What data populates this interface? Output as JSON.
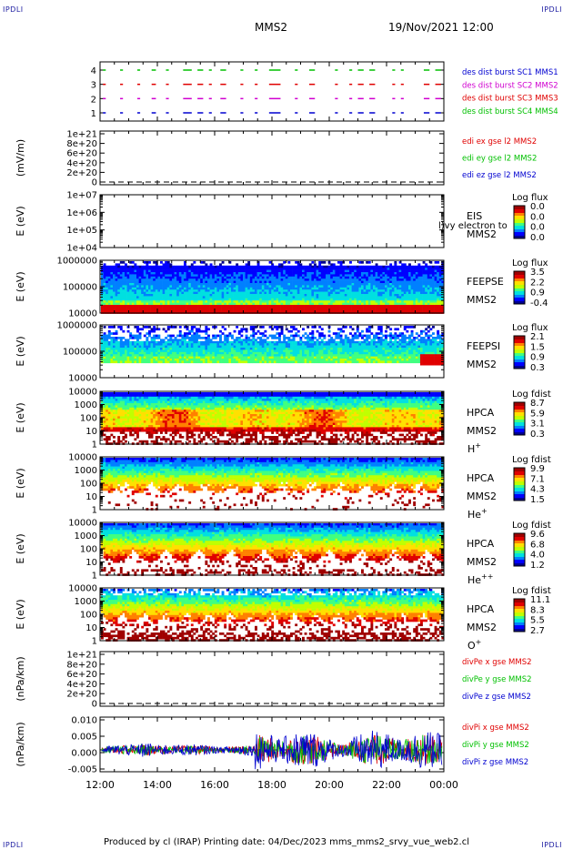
{
  "header": {
    "corner_label": "IPDLI",
    "spacecraft": "MMS2",
    "datetime": "19/Nov/2021 12:00"
  },
  "footer": {
    "text": "Produced by cl (IRAP)   Printing date: 04/Dec/2023   mms_mms2_srvy_vue_web2.cl"
  },
  "colors": {
    "red": "#e00000",
    "green": "#00c000",
    "blue": "#0000d0",
    "magenta": "#d000d0",
    "colorbar": [
      "#000090",
      "#0000ff",
      "#0080ff",
      "#00e0e0",
      "#40ff80",
      "#c0ff00",
      "#ffe000",
      "#ff8000",
      "#e00000",
      "#a00000"
    ]
  },
  "chart_data": {
    "time_axis": {
      "ticks": [
        "12:00",
        "14:00",
        "16:00",
        "18:00",
        "20:00",
        "22:00",
        "00:00"
      ],
      "range_hours": [
        12,
        24
      ]
    },
    "panels": [
      {
        "id": "burst",
        "type": "timeline",
        "yticks": [
          "4",
          "3",
          "2",
          "1"
        ],
        "legend": [
          {
            "text": "des dist burst SC1 MMS1",
            "color": "blue"
          },
          {
            "text": "des dist burst SC2 MMS2",
            "color": "magenta"
          },
          {
            "text": "des dist burst SC3 MMS3",
            "color": "red"
          },
          {
            "text": "des dist burst SC4 MMS4",
            "color": "green"
          }
        ],
        "rows": [
          {
            "level": 4,
            "color": "green",
            "segments": [
              [
                12.1,
                12.2
              ],
              [
                12.7,
                12.8
              ],
              [
                13.3,
                13.4
              ],
              [
                13.8,
                13.95
              ],
              [
                14.3,
                14.4
              ],
              [
                14.9,
                15.2
              ],
              [
                15.4,
                15.6
              ],
              [
                15.8,
                15.9
              ],
              [
                16.2,
                16.4
              ],
              [
                16.9,
                17.0
              ],
              [
                17.4,
                17.5
              ],
              [
                17.9,
                18.3
              ],
              [
                18.8,
                18.9
              ],
              [
                19.3,
                19.5
              ],
              [
                20.2,
                20.3
              ],
              [
                20.7,
                20.8
              ],
              [
                21.0,
                21.2
              ],
              [
                21.4,
                21.6
              ],
              [
                22.2,
                22.3
              ],
              [
                22.5,
                22.6
              ],
              [
                23.3,
                23.5
              ],
              [
                23.7,
                23.9
              ]
            ]
          },
          {
            "level": 3,
            "color": "red",
            "segments": [
              [
                12.1,
                12.2
              ],
              [
                12.7,
                12.8
              ],
              [
                13.3,
                13.4
              ],
              [
                13.8,
                13.95
              ],
              [
                14.3,
                14.4
              ],
              [
                14.9,
                15.2
              ],
              [
                15.4,
                15.6
              ],
              [
                15.8,
                15.9
              ],
              [
                16.2,
                16.4
              ],
              [
                16.9,
                17.0
              ],
              [
                17.4,
                17.5
              ],
              [
                17.9,
                18.3
              ],
              [
                18.8,
                18.9
              ],
              [
                19.3,
                19.5
              ],
              [
                20.2,
                20.3
              ],
              [
                20.7,
                20.8
              ],
              [
                21.0,
                21.2
              ],
              [
                21.4,
                21.6
              ],
              [
                22.2,
                22.3
              ],
              [
                22.5,
                22.6
              ],
              [
                23.3,
                23.5
              ],
              [
                23.7,
                23.9
              ]
            ]
          },
          {
            "level": 2,
            "color": "magenta",
            "segments": [
              [
                12.1,
                12.2
              ],
              [
                12.7,
                12.8
              ],
              [
                13.3,
                13.4
              ],
              [
                13.8,
                13.95
              ],
              [
                14.3,
                14.4
              ],
              [
                14.9,
                15.2
              ],
              [
                15.4,
                15.6
              ],
              [
                15.8,
                15.9
              ],
              [
                16.2,
                16.4
              ],
              [
                16.9,
                17.0
              ],
              [
                17.4,
                17.5
              ],
              [
                17.9,
                18.3
              ],
              [
                18.8,
                18.9
              ],
              [
                19.3,
                19.5
              ],
              [
                20.2,
                20.3
              ],
              [
                20.7,
                20.8
              ],
              [
                21.0,
                21.2
              ],
              [
                21.4,
                21.6
              ],
              [
                22.2,
                22.3
              ],
              [
                22.5,
                22.6
              ],
              [
                23.3,
                23.5
              ],
              [
                23.7,
                23.9
              ]
            ]
          },
          {
            "level": 1,
            "color": "blue",
            "segments": [
              [
                12.1,
                12.2
              ],
              [
                12.7,
                12.8
              ],
              [
                13.3,
                13.4
              ],
              [
                13.8,
                13.95
              ],
              [
                14.3,
                14.4
              ],
              [
                14.9,
                15.2
              ],
              [
                15.4,
                15.6
              ],
              [
                15.8,
                15.9
              ],
              [
                16.2,
                16.4
              ],
              [
                16.9,
                17.0
              ],
              [
                17.4,
                17.5
              ],
              [
                17.9,
                18.3
              ],
              [
                18.8,
                18.9
              ],
              [
                19.3,
                19.5
              ],
              [
                20.2,
                20.3
              ],
              [
                20.7,
                20.8
              ],
              [
                21.0,
                21.2
              ],
              [
                21.4,
                21.6
              ],
              [
                22.2,
                22.3
              ],
              [
                22.5,
                22.6
              ],
              [
                23.3,
                23.5
              ],
              [
                23.7,
                23.9
              ]
            ]
          }
        ]
      },
      {
        "id": "edi",
        "type": "line",
        "ylabel": "(mV/m)",
        "yticks": [
          "1e+21",
          "8e+20",
          "6e+20",
          "4e+20",
          "2e+20",
          "0"
        ],
        "ylim": [
          0,
          1e+21
        ],
        "zero_line": true,
        "legend": [
          {
            "text": "edi ex gse l2 MMS2",
            "color": "red"
          },
          {
            "text": "edi ey gse l2 MMS2",
            "color": "green"
          },
          {
            "text": "edi ez gse l2 MMS2",
            "color": "blue"
          }
        ]
      },
      {
        "id": "eis",
        "type": "spectrogram",
        "empty": true,
        "ylabel": "E (eV)",
        "yticks": [
          "1e+07",
          "1e+06",
          "1e+05",
          "1e+04"
        ],
        "labels": [
          "EIS",
          "MMS2"
        ],
        "overlay": "l)vy electron to",
        "colorbar": {
          "title": "Log flux",
          "values": [
            "0.0",
            "0.0",
            "0.0",
            "0.0"
          ]
        }
      },
      {
        "id": "feepse",
        "type": "spectrogram",
        "ylabel": "E (eV)",
        "yticks": [
          "1000000",
          "100000",
          "10000"
        ],
        "labels": [
          "FEEPSE",
          "MMS2"
        ],
        "colorbar": {
          "title": "Log flux",
          "values": [
            "3.5",
            "2.2",
            "0.9",
            "-0.4"
          ]
        }
      },
      {
        "id": "feepsi",
        "type": "spectrogram",
        "ylabel": "E (eV)",
        "yticks": [
          "1000000",
          "100000",
          "10000"
        ],
        "labels": [
          "FEEPSI",
          "MMS2"
        ],
        "colorbar": {
          "title": "Log flux",
          "values": [
            "2.1",
            "1.5",
            "0.9",
            "0.3"
          ]
        }
      },
      {
        "id": "hpca_h",
        "type": "spectrogram",
        "ylabel": "E (eV)",
        "yticks": [
          "10000",
          "1000",
          "100",
          "10",
          "1"
        ],
        "labels": [
          "HPCA",
          "MMS2"
        ],
        "species": "H",
        "charge": "+",
        "colorbar": {
          "title": "Log fdist",
          "values": [
            "8.7",
            "5.9",
            "3.1",
            "0.3"
          ]
        }
      },
      {
        "id": "hpca_he",
        "type": "spectrogram",
        "ylabel": "E (eV)",
        "yticks": [
          "10000",
          "1000",
          "100",
          "10",
          "1"
        ],
        "labels": [
          "HPCA",
          "MMS2"
        ],
        "species": "He",
        "charge": "+",
        "colorbar": {
          "title": "Log fdist",
          "values": [
            "9.9",
            "7.1",
            "4.3",
            "1.5"
          ]
        }
      },
      {
        "id": "hpca_hepp",
        "type": "spectrogram",
        "ylabel": "E (eV)",
        "yticks": [
          "10000",
          "1000",
          "100",
          "10",
          "1"
        ],
        "labels": [
          "HPCA",
          "MMS2"
        ],
        "species": "He",
        "charge": "++",
        "colorbar": {
          "title": "Log fdist",
          "values": [
            "9.6",
            "6.8",
            "4.0",
            "1.2"
          ]
        }
      },
      {
        "id": "hpca_o",
        "type": "spectrogram",
        "ylabel": "E (eV)",
        "yticks": [
          "10000",
          "1000",
          "100",
          "10",
          "1"
        ],
        "labels": [
          "HPCA",
          "MMS2"
        ],
        "species": "O",
        "charge": "+",
        "colorbar": {
          "title": "Log fdist",
          "values": [
            "11.1",
            "8.3",
            "5.5",
            "2.7"
          ]
        }
      },
      {
        "id": "divpe",
        "type": "line",
        "ylabel": "(nPa/km)",
        "yticks": [
          "1e+21",
          "8e+20",
          "6e+20",
          "4e+20",
          "2e+20",
          "0"
        ],
        "ylim": [
          0,
          1e+21
        ],
        "zero_line": true,
        "legend": [
          {
            "text": "divPe x gse MMS2",
            "color": "red"
          },
          {
            "text": "divPe y gse MMS2",
            "color": "green"
          },
          {
            "text": "divPe z gse MMS2",
            "color": "blue"
          }
        ]
      },
      {
        "id": "divpi",
        "type": "line",
        "ylabel": "(nPa/km)",
        "yticks": [
          "0.010",
          "0.005",
          "0.000",
          "-0.005"
        ],
        "ylim": [
          -0.008,
          0.012
        ],
        "zero_line": true,
        "legend": [
          {
            "text": "divPi x gse MMS2",
            "color": "red"
          },
          {
            "text": "divPi y gse MMS2",
            "color": "green"
          },
          {
            "text": "divPi z gse MMS2",
            "color": "blue"
          }
        ]
      }
    ]
  }
}
